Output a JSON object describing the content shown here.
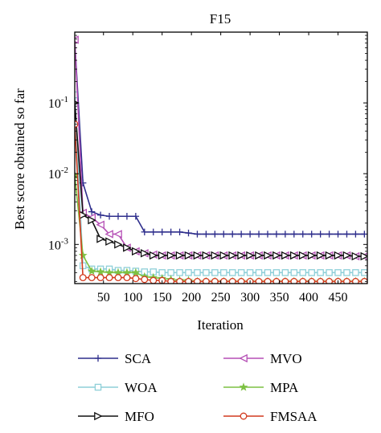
{
  "chart_data": {
    "type": "line",
    "title": "F15",
    "xlabel": "Iteration",
    "ylabel": "Best score obtained so far",
    "xlim": [
      1,
      500
    ],
    "ylim": [
      0.00028,
      1.0
    ],
    "yscale": "log",
    "grid": false,
    "legend_position": "below",
    "xticks": [
      50,
      100,
      150,
      200,
      250,
      300,
      350,
      400,
      450
    ],
    "xtick_labels": [
      "50",
      "100",
      "150",
      "200",
      "250",
      "300",
      "350",
      "400",
      "450"
    ],
    "yticks": [
      0.001,
      0.01,
      0.1
    ],
    "ytick_labels": [
      {
        "base": "10",
        "exp": "-3"
      },
      {
        "base": "10",
        "exp": "-2"
      },
      {
        "base": "10",
        "exp": "-1"
      }
    ],
    "series": [
      {
        "name": "SCA",
        "color": "#2e2e8c",
        "marker": "plus",
        "x": [
          1,
          15,
          30,
          45,
          60,
          75,
          90,
          105,
          120,
          135,
          150,
          165,
          180,
          195,
          210,
          225,
          240,
          255,
          270,
          285,
          300,
          315,
          330,
          345,
          360,
          375,
          390,
          405,
          420,
          435,
          450,
          465,
          480,
          495
        ],
        "y": [
          0.75,
          0.0074,
          0.0029,
          0.0026,
          0.0025,
          0.0025,
          0.0025,
          0.0025,
          0.0015,
          0.0015,
          0.0015,
          0.0015,
          0.0015,
          0.00145,
          0.0014,
          0.0014,
          0.0014,
          0.0014,
          0.0014,
          0.0014,
          0.0014,
          0.0014,
          0.0014,
          0.0014,
          0.0014,
          0.0014,
          0.0014,
          0.0014,
          0.0014,
          0.0014,
          0.0014,
          0.0014,
          0.0014,
          0.0014
        ]
      },
      {
        "name": "MVO",
        "color": "#b54fb5",
        "marker": "triangle-left",
        "x": [
          1,
          15,
          30,
          45,
          60,
          75,
          90,
          105,
          120,
          135,
          150,
          165,
          180,
          195,
          210,
          225,
          240,
          255,
          270,
          285,
          300,
          315,
          330,
          345,
          360,
          375,
          390,
          405,
          420,
          435,
          450,
          465,
          480,
          495
        ],
        "y": [
          0.78,
          0.0028,
          0.0024,
          0.0019,
          0.0014,
          0.0014,
          0.0009,
          0.0008,
          0.00075,
          0.00072,
          0.0007,
          0.0007,
          0.0007,
          0.0007,
          0.0007,
          0.0007,
          0.0007,
          0.0007,
          0.0007,
          0.0007,
          0.0007,
          0.0007,
          0.0007,
          0.0007,
          0.0007,
          0.0007,
          0.0007,
          0.0007,
          0.0007,
          0.0007,
          0.0007,
          0.0007,
          0.00068,
          0.00068
        ]
      },
      {
        "name": "WOA",
        "color": "#8ecfd8",
        "marker": "square",
        "x": [
          1,
          15,
          30,
          45,
          60,
          75,
          90,
          105,
          120,
          135,
          150,
          165,
          180,
          195,
          210,
          225,
          240,
          255,
          270,
          285,
          300,
          315,
          330,
          345,
          360,
          375,
          390,
          405,
          420,
          435,
          450,
          465,
          480,
          495
        ],
        "y": [
          0.13,
          0.0005,
          0.00045,
          0.00045,
          0.00045,
          0.00043,
          0.00043,
          0.00042,
          0.00041,
          0.00041,
          0.0004,
          0.0004,
          0.0004,
          0.0004,
          0.0004,
          0.0004,
          0.0004,
          0.0004,
          0.0004,
          0.0004,
          0.0004,
          0.0004,
          0.0004,
          0.0004,
          0.0004,
          0.0004,
          0.0004,
          0.0004,
          0.0004,
          0.0004,
          0.0004,
          0.0004,
          0.0004,
          0.0004
        ]
      },
      {
        "name": "MPA",
        "color": "#7dc142",
        "marker": "star",
        "x": [
          1,
          15,
          30,
          45,
          60,
          75,
          90,
          105,
          120,
          135,
          150,
          165,
          180,
          195,
          210,
          225,
          240,
          255,
          270,
          285,
          300,
          315,
          330,
          345,
          360,
          375,
          390,
          405,
          420,
          435,
          450,
          465,
          480,
          495
        ],
        "y": [
          0.0095,
          0.0007,
          0.00042,
          0.00041,
          0.0004,
          0.0004,
          0.0004,
          0.0004,
          0.00035,
          0.00034,
          0.00033,
          0.00032,
          0.00031,
          0.00031,
          0.0003,
          0.0003,
          0.0003,
          0.0003,
          0.0003,
          0.0003,
          0.0003,
          0.0003,
          0.0003,
          0.0003,
          0.0003,
          0.0003,
          0.0003,
          0.0003,
          0.0003,
          0.0003,
          0.0003,
          0.0003,
          0.0003,
          0.0003
        ]
      },
      {
        "name": "MFO",
        "color": "#111111",
        "marker": "triangle-right",
        "x": [
          1,
          15,
          30,
          45,
          60,
          75,
          90,
          105,
          120,
          135,
          150,
          165,
          180,
          195,
          210,
          225,
          240,
          255,
          270,
          285,
          300,
          315,
          330,
          345,
          360,
          375,
          390,
          405,
          420,
          435,
          450,
          465,
          480,
          495
        ],
        "y": [
          0.1,
          0.0026,
          0.0022,
          0.0012,
          0.0011,
          0.001,
          0.0009,
          0.0008,
          0.00075,
          0.0007,
          0.0007,
          0.0007,
          0.0007,
          0.0007,
          0.0007,
          0.0007,
          0.0007,
          0.0007,
          0.0007,
          0.0007,
          0.0007,
          0.0007,
          0.0007,
          0.0007,
          0.0007,
          0.0007,
          0.0007,
          0.0007,
          0.0007,
          0.0007,
          0.0007,
          0.0007,
          0.00068,
          0.00068
        ]
      },
      {
        "name": "FMSAA",
        "color": "#d23a1e",
        "marker": "circle",
        "x": [
          1,
          15,
          30,
          45,
          60,
          75,
          90,
          105,
          120,
          135,
          150,
          165,
          180,
          195,
          210,
          225,
          240,
          255,
          270,
          285,
          300,
          315,
          330,
          345,
          360,
          375,
          390,
          405,
          420,
          435,
          450,
          465,
          480,
          495
        ],
        "y": [
          0.05,
          0.00034,
          0.00034,
          0.00034,
          0.00034,
          0.00034,
          0.00034,
          0.00033,
          0.00032,
          0.00031,
          0.00031,
          0.0003,
          0.0003,
          0.0003,
          0.0003,
          0.0003,
          0.0003,
          0.0003,
          0.0003,
          0.0003,
          0.0003,
          0.0003,
          0.0003,
          0.0003,
          0.0003,
          0.0003,
          0.0003,
          0.0003,
          0.0003,
          0.0003,
          0.0003,
          0.0003,
          0.0003,
          0.0003
        ]
      }
    ]
  }
}
